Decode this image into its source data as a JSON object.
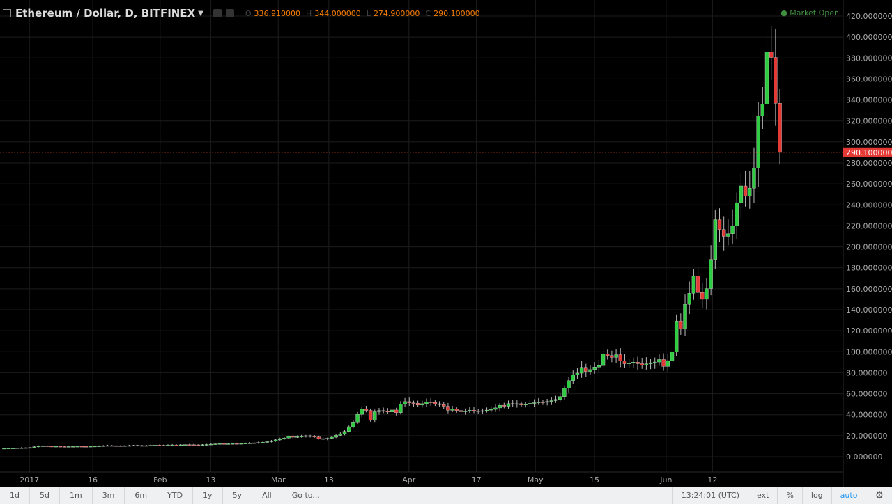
{
  "header": {
    "title": "Ethereum / Dollar, D, BITFINEX",
    "o_label": "O",
    "o_value": "336.910000",
    "h_label": "H",
    "h_value": "344.000000",
    "l_label": "L",
    "l_value": "274.900000",
    "c_label": "C",
    "c_value": "290.100000",
    "market_status": "● Market Open"
  },
  "colors": {
    "up": "#2ecc40",
    "down": "#e53935",
    "price_line": "#ff5722",
    "grid": "#1c1c1c",
    "axis_text": "#aaaaaa"
  },
  "bottom_bar": {
    "ranges": [
      "1d",
      "5d",
      "1m",
      "3m",
      "6m",
      "YTD",
      "1y",
      "5y",
      "All"
    ],
    "goto": "Go to...",
    "time": "13:24:01 (UTC)",
    "ext": "ext",
    "percent": "%",
    "log": "log",
    "auto": "auto",
    "settings_icon": "gear-icon"
  },
  "chart_data": {
    "type": "candlestick",
    "ylim": [
      -12,
      420
    ],
    "yticks": [
      "0.000000",
      "20.000000",
      "40.000000",
      "60.000000",
      "80.000000",
      "100.000000",
      "120.000000",
      "140.000000",
      "160.000000",
      "180.000000",
      "200.000000",
      "220.000000",
      "240.000000",
      "260.000000",
      "280.000000",
      "300.000000",
      "320.000000",
      "340.000000",
      "360.000000",
      "380.000000",
      "400.000000",
      "420.000000"
    ],
    "xticks": [
      {
        "label": "2017",
        "day": 6
      },
      {
        "label": "16",
        "day": 21
      },
      {
        "label": "Feb",
        "day": 37
      },
      {
        "label": "13",
        "day": 49
      },
      {
        "label": "Mar",
        "day": 65
      },
      {
        "label": "13",
        "day": 77
      },
      {
        "label": "Apr",
        "day": 96
      },
      {
        "label": "17",
        "day": 112
      },
      {
        "label": "May",
        "day": 126
      },
      {
        "label": "15",
        "day": 140
      },
      {
        "label": "Jun",
        "day": 157
      },
      {
        "label": "12",
        "day": 168
      }
    ],
    "last_price": 290.1,
    "last_price_label": "290.100000",
    "closes": [
      8.0,
      8.1,
      8.2,
      8.4,
      8.5,
      8.6,
      8.7,
      9.4,
      10.1,
      10.3,
      10.0,
      9.8,
      9.9,
      9.7,
      9.6,
      9.7,
      9.8,
      9.9,
      9.8,
      9.7,
      9.9,
      10.0,
      10.2,
      10.4,
      10.6,
      10.5,
      10.4,
      10.3,
      10.5,
      10.6,
      10.8,
      10.6,
      10.4,
      10.6,
      10.9,
      11.0,
      10.9,
      10.8,
      11.1,
      11.2,
      11.0,
      11.3,
      11.5,
      11.4,
      11.3,
      11.2,
      11.4,
      11.6,
      11.9,
      12.2,
      12.4,
      12.2,
      12.3,
      12.5,
      12.4,
      12.6,
      12.8,
      13.0,
      13.2,
      13.4,
      13.8,
      14.3,
      15.1,
      16.0,
      16.9,
      17.8,
      19.2,
      18.7,
      19.0,
      19.4,
      19.9,
      19.5,
      18.8,
      17.2,
      16.8,
      17.5,
      18.6,
      20.3,
      21.8,
      24.1,
      28.5,
      33.0,
      40.3,
      45.2,
      44.1,
      35.0,
      42.8,
      44.0,
      43.2,
      42.6,
      44.5,
      42.0,
      50.1,
      52.5,
      51.3,
      50.9,
      49.2,
      50.5,
      52.1,
      51.6,
      50.4,
      49.6,
      48.1,
      44.2,
      45.2,
      44.0,
      42.8,
      43.5,
      44.3,
      43.6,
      43.2,
      43.8,
      44.4,
      45.1,
      46.5,
      49.0,
      48.1,
      50.6,
      49.9,
      50.5,
      49.3,
      50.0,
      50.8,
      51.4,
      52.1,
      51.8,
      52.6,
      53.4,
      54.5,
      57.2,
      65.3,
      72.5,
      77.8,
      79.6,
      85.1,
      81.2,
      83.0,
      85.4,
      86.8,
      98.1,
      96.4,
      94.6,
      97.2,
      91.2,
      88.5,
      89.3,
      90.1,
      88.6,
      87.2,
      88.4,
      89.5,
      90.2,
      92.6,
      86.0,
      91.5,
      99.8,
      129.3,
      122.0,
      145.2,
      155.7,
      172.1,
      156.4,
      150.0,
      160.2,
      188.0,
      225.9,
      216.5,
      210.0,
      212.5,
      220.0,
      242.1,
      258.1,
      248.3,
      256.0,
      275.0,
      325.0,
      336.2,
      385.6,
      380.5,
      336.9,
      290.1
    ],
    "candle_span_days": 185
  }
}
